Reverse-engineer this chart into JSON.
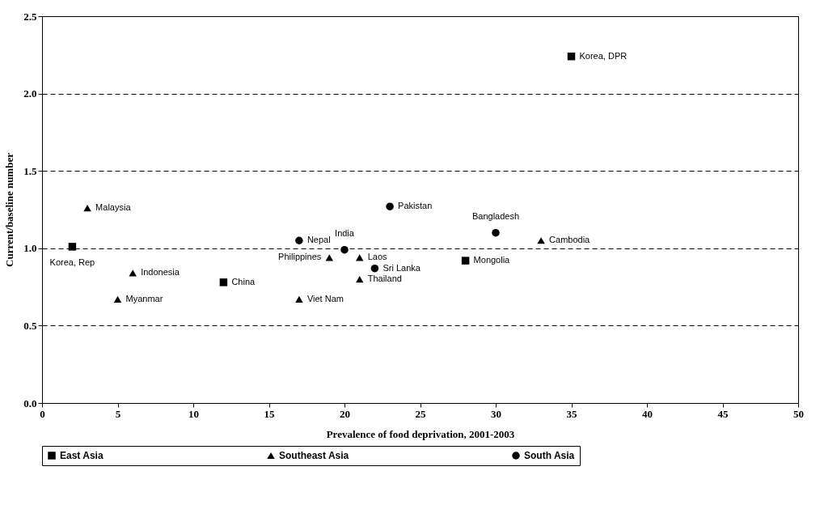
{
  "chart_data": {
    "type": "scatter",
    "xlabel": "Prevalence of food deprivation, 2001-2003",
    "ylabel": "Current/baseline number",
    "xlim": [
      0,
      50
    ],
    "xticks": [
      0,
      5,
      10,
      15,
      20,
      25,
      30,
      35,
      40,
      45,
      50
    ],
    "ylim": [
      0,
      2.5
    ],
    "yticks": [
      {
        "value": 0,
        "label": "0.0"
      },
      {
        "value": 0.5,
        "label": "0.5"
      },
      {
        "value": 1,
        "label": "1.0"
      },
      {
        "value": 1.5,
        "label": "1.5"
      },
      {
        "value": 2,
        "label": "2.0"
      },
      {
        "value": 2.5,
        "label": "2.5"
      }
    ],
    "grid": "y",
    "legend": "bottom",
    "series": [
      {
        "name": "East Asia",
        "color": "#000000",
        "marker": "square",
        "x": [
          2,
          12,
          28,
          35
        ],
        "values": [
          1.01,
          0.78,
          0.92,
          2.24
        ]
      },
      {
        "name": "Southeast Asia",
        "color": "#000000",
        "marker": "triangle",
        "x": [
          3,
          5,
          6,
          17,
          19,
          21,
          21,
          33
        ],
        "values": [
          1.26,
          0.67,
          0.84,
          0.67,
          0.94,
          0.94,
          0.8,
          1.05
        ]
      },
      {
        "name": "South Asia",
        "color": "#000000",
        "marker": "circle",
        "x": [
          17,
          20,
          22,
          23,
          30
        ],
        "values": [
          1.05,
          0.99,
          0.87,
          1.27,
          1.1
        ]
      }
    ],
    "annotations": [
      {
        "text": "Korea, Rep",
        "x": 2,
        "y": 1.01
      },
      {
        "text": "China",
        "x": 12,
        "y": 0.78
      },
      {
        "text": "Mongolia",
        "x": 28,
        "y": 0.92
      },
      {
        "text": "Korea, DPR",
        "x": 35,
        "y": 2.24
      },
      {
        "text": "Malaysia",
        "x": 3,
        "y": 1.26
      },
      {
        "text": "Myanmar",
        "x": 5,
        "y": 0.67
      },
      {
        "text": "Indonesia",
        "x": 6,
        "y": 0.84
      },
      {
        "text": "Viet Nam",
        "x": 17,
        "y": 0.67
      },
      {
        "text": "Philippines",
        "x": 19,
        "y": 0.94
      },
      {
        "text": "Laos",
        "x": 21,
        "y": 0.94
      },
      {
        "text": "Thailand",
        "x": 21,
        "y": 0.8
      },
      {
        "text": "Cambodia",
        "x": 33,
        "y": 1.05
      },
      {
        "text": "Nepal",
        "x": 17,
        "y": 1.05
      },
      {
        "text": "India",
        "x": 20,
        "y": 0.99
      },
      {
        "text": "Sri Lanka",
        "x": 22,
        "y": 0.87
      },
      {
        "text": "Pakistan",
        "x": 23,
        "y": 1.27
      },
      {
        "text": "Bangladesh",
        "x": 30,
        "y": 1.1
      }
    ]
  }
}
